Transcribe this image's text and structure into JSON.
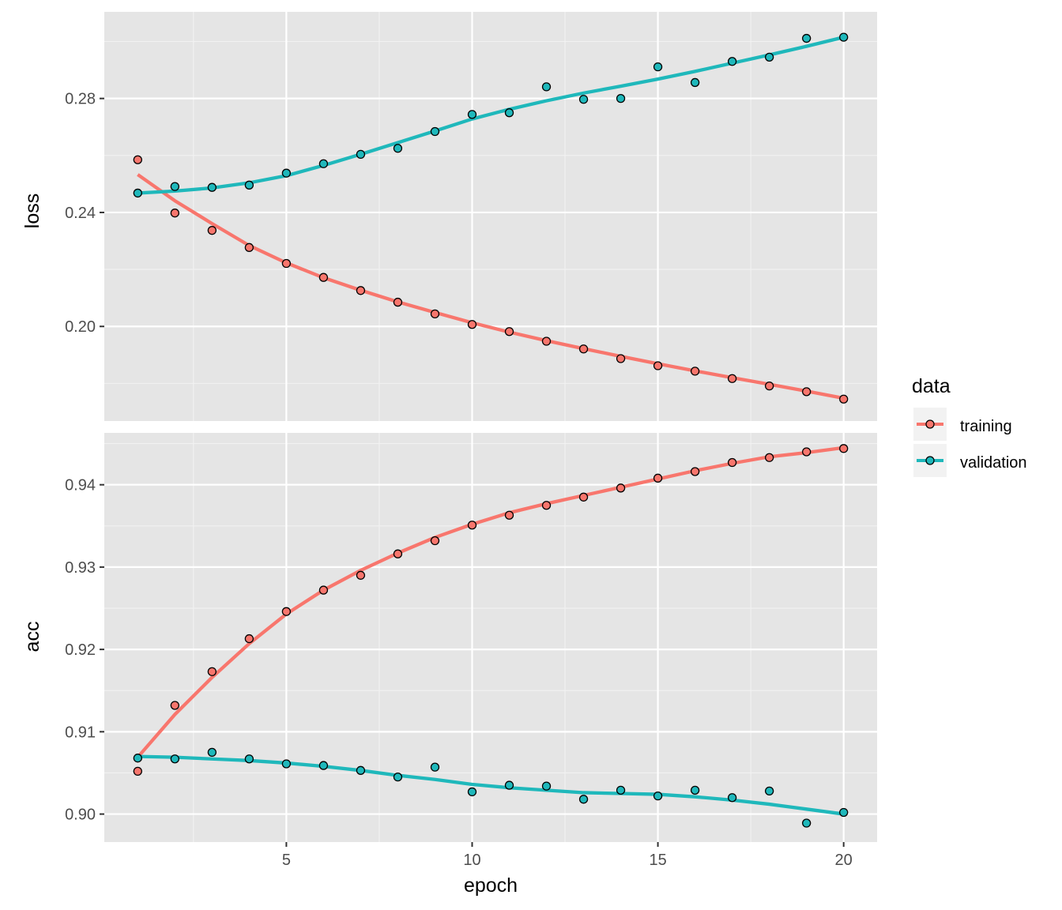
{
  "chart_data": {
    "type": "scatter",
    "xlabel": "epoch",
    "x": [
      1,
      2,
      3,
      4,
      5,
      6,
      7,
      8,
      9,
      10,
      11,
      12,
      13,
      14,
      15,
      16,
      17,
      18,
      19,
      20
    ],
    "x_ticks": [
      5,
      10,
      15,
      20
    ],
    "x_tick_labels": [
      "5",
      "10",
      "15",
      "20"
    ],
    "xlim": [
      0.1,
      20.9
    ],
    "grid": true,
    "background": "#e5e5e5",
    "legend": {
      "title": "data",
      "position": "right",
      "entries": [
        {
          "name": "training",
          "color": "#f8766d"
        },
        {
          "name": "validation",
          "color": "#1fb8bb"
        }
      ]
    },
    "panels": [
      {
        "ylabel": "loss",
        "ylim": [
          0.1668,
          0.3104
        ],
        "y_ticks": [
          0.2,
          0.24,
          0.28
        ],
        "y_tick_labels": [
          "0.20",
          "0.24",
          "0.28"
        ],
        "series": [
          {
            "name": "training",
            "color": "#f8766d",
            "points": [
              0.2585,
              0.2398,
              0.2337,
              0.2277,
              0.2221,
              0.2172,
              0.2126,
              0.2085,
              0.2044,
              0.2007,
              0.1982,
              0.1948,
              0.1921,
              0.1887,
              0.1862,
              0.1843,
              0.1817,
              0.1791,
              0.1771,
              0.1745
            ],
            "smooth": [
              0.2533,
              0.2441,
              0.2361,
              0.2284,
              0.2223,
              0.2171,
              0.2127,
              0.2086,
              0.2049,
              0.2013,
              0.198,
              0.195,
              0.1922,
              0.1895,
              0.1869,
              0.1844,
              0.182,
              0.1797,
              0.1773,
              0.1748
            ]
          },
          {
            "name": "validation",
            "color": "#1fb8bb",
            "points": [
              0.2468,
              0.2491,
              0.2488,
              0.2496,
              0.2538,
              0.2571,
              0.2604,
              0.2625,
              0.2684,
              0.2744,
              0.275,
              0.2841,
              0.2797,
              0.28,
              0.2911,
              0.2856,
              0.293,
              0.2945,
              0.3011,
              0.3015
            ],
            "smooth": [
              0.2468,
              0.2475,
              0.2486,
              0.2504,
              0.2529,
              0.2565,
              0.2604,
              0.2645,
              0.2686,
              0.2728,
              0.2762,
              0.2792,
              0.2819,
              0.2843,
              0.2868,
              0.2895,
              0.2924,
              0.2953,
              0.2983,
              0.3015
            ]
          }
        ]
      },
      {
        "ylabel": "acc",
        "ylim": [
          0.8966,
          0.9463
        ],
        "y_ticks": [
          0.9,
          0.91,
          0.92,
          0.93,
          0.94
        ],
        "y_tick_labels": [
          "0.90",
          "0.91",
          "0.92",
          "0.93",
          "0.94"
        ],
        "series": [
          {
            "name": "training",
            "color": "#f8766d",
            "points": [
              0.9052,
              0.9132,
              0.9173,
              0.9213,
              0.9246,
              0.9272,
              0.929,
              0.9316,
              0.9332,
              0.9351,
              0.9363,
              0.9375,
              0.9385,
              0.9396,
              0.9408,
              0.9416,
              0.9427,
              0.9433,
              0.944,
              0.9444
            ],
            "smooth": [
              0.9069,
              0.9121,
              0.9166,
              0.9207,
              0.9243,
              0.9272,
              0.9296,
              0.9317,
              0.9336,
              0.9352,
              0.9366,
              0.9377,
              0.9387,
              0.9397,
              0.9407,
              0.9417,
              0.9426,
              0.9434,
              0.9439,
              0.9445
            ]
          },
          {
            "name": "validation",
            "color": "#1fb8bb",
            "points": [
              0.9068,
              0.9067,
              0.9075,
              0.9067,
              0.9061,
              0.9059,
              0.9053,
              0.9045,
              0.9057,
              0.9027,
              0.9035,
              0.9034,
              0.9018,
              0.9029,
              0.9022,
              0.9029,
              0.902,
              0.9028,
              0.8989,
              0.9002
            ],
            "smooth": [
              0.907,
              0.9069,
              0.9067,
              0.9065,
              0.9062,
              0.9058,
              0.9053,
              0.9047,
              0.9042,
              0.9036,
              0.9032,
              0.9029,
              0.9026,
              0.9025,
              0.9024,
              0.9021,
              0.9017,
              0.9012,
              0.9006,
              0.9
            ]
          }
        ]
      }
    ]
  }
}
